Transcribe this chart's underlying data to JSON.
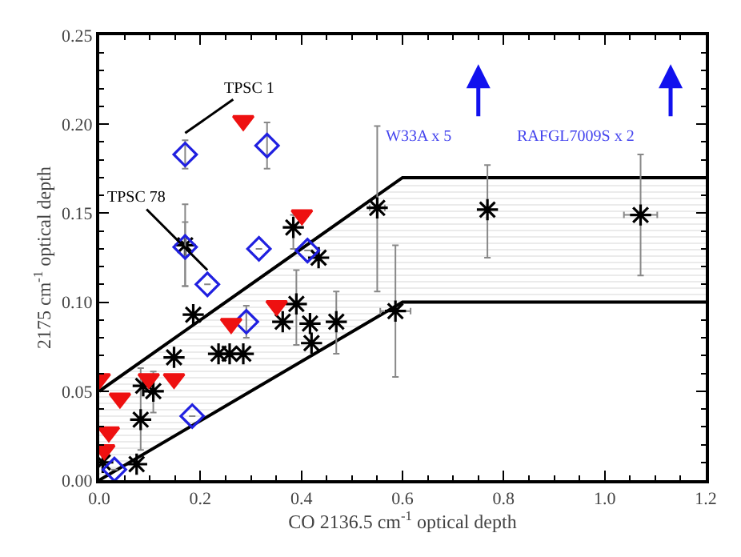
{
  "chart_data": {
    "type": "scatter",
    "xlabel": "CO 2136.5 cm$^{-1}$ optical depth",
    "ylabel": "2175 cm$^{-1}$ optical depth",
    "xlim": [
      0,
      1.2
    ],
    "xticks": [
      {
        "value": 0,
        "label": "0.0"
      },
      {
        "value": 0.2,
        "label": "0.2"
      },
      {
        "value": 0.4,
        "label": "0.4"
      },
      {
        "value": 0.6,
        "label": "0.6"
      },
      {
        "value": 0.8,
        "label": "0.8"
      },
      {
        "value": 1.0,
        "label": "1.0"
      },
      {
        "value": 1.2,
        "label": "1.2"
      }
    ],
    "ylim": [
      0,
      0.25
    ],
    "yticks": [
      {
        "value": 0,
        "label": "0.00"
      },
      0.05,
      {
        "value": 0.1,
        "label": "0.10"
      },
      0.15,
      {
        "value": 0.2,
        "label": "0.20"
      },
      0.25
    ],
    "series": [
      {
        "type": "line",
        "color": "#000000",
        "x": [
          0,
          0.6,
          1.2
        ],
        "values": [
          0,
          0.1,
          0.1
        ]
      },
      {
        "type": "area",
        "color": "#000000",
        "x": [
          0,
          0.6,
          1.2
        ],
        "values": [
          0.05,
          0.17,
          0.17
        ]
      },
      {
        "marker": "cross",
        "color": "#000000",
        "x": [
          0.007,
          0.074,
          0.082,
          0.087,
          0.107,
          0.148,
          0.17,
          0.186,
          0.236,
          0.258,
          0.285,
          0.363,
          0.39,
          0.384,
          0.417,
          0.42,
          0.434,
          0.469,
          0.55,
          0.586,
          0.768,
          1.071
        ],
        "values": [
          0.01,
          0.009,
          0.034,
          0.053,
          0.05,
          0.069,
          0.132,
          0.093,
          0.071,
          0.071,
          0.071,
          0.089,
          0.099,
          0.142,
          0.088,
          0.077,
          0.125,
          0.089,
          0.153,
          0.095,
          0.152,
          0.149
        ],
        "errors": [
          null,
          null,
          [
            0.017,
            0.063
          ],
          null,
          [
            0.038,
            0.061
          ],
          null,
          [
            0.109,
            0.145
          ],
          null,
          null,
          null,
          null,
          null,
          [
            0.076,
            0.118
          ],
          [
            0.13,
            0.149
          ],
          null,
          null,
          null,
          [
            0.071,
            0.106
          ],
          [
            0.106,
            0.199
          ],
          [
            0.058,
            0.132
          ],
          [
            0.125,
            0.177
          ],
          [
            0.115,
            0.183
          ]
        ],
        "xerrors": [
          null,
          null,
          null,
          null,
          null,
          null,
          null,
          null,
          null,
          null,
          null,
          null,
          null,
          null,
          null,
          null,
          null,
          null,
          0.015,
          0.03,
          null,
          0.033
        ]
      },
      {
        "marker": "diamond",
        "color": "#2020e0",
        "x": [
          0.17,
          0.332,
          0.17,
          0.214,
          0.316,
          0.291,
          0.412,
          0.184,
          0.03
        ],
        "values": [
          0.183,
          0.188,
          0.131,
          0.11,
          0.13,
          0.089,
          0.129,
          0.036,
          0.006
        ],
        "errors": [
          [
            0.175,
            0.191
          ],
          [
            0.175,
            0.201
          ],
          [
            0.109,
            0.155
          ],
          null,
          null,
          [
            0.08,
            0.098
          ],
          null,
          null,
          null
        ]
      },
      {
        "marker": "triangle",
        "color": "#ee1111",
        "x": [
          0.001,
          0.01,
          0.019,
          0.041,
          0.098,
          0.148,
          0.261,
          0.285,
          0.351,
          0.401
        ],
        "values": [
          0.057,
          0.017,
          0.027,
          0.046,
          0.057,
          0.057,
          0.088,
          0.202,
          0.098,
          0.149
        ]
      }
    ],
    "annotations": [
      {
        "text": "TPSC 1",
        "x": 0.17,
        "y": 0.195
      },
      {
        "text": "TPSC 78",
        "x": 0.214,
        "y": 0.118
      },
      "W33A x 5",
      "RAFGL7009S x 2"
    ]
  }
}
